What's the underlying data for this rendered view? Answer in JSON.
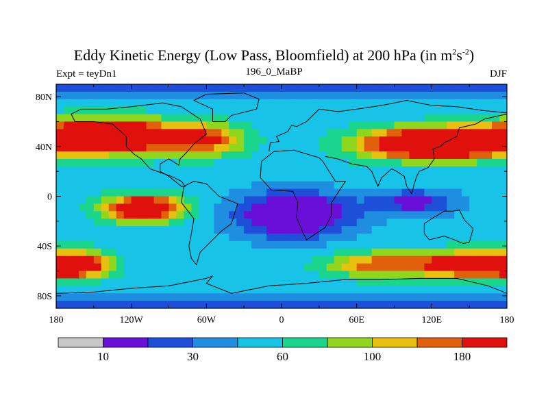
{
  "chart_data": {
    "type": "heatmap",
    "title": "Eddy Kinetic Energy (Low Pass, Bloomfield) at 200 hPa (in m",
    "title_units_sup1": "2",
    "title_mid": "s",
    "title_units_sup2": "-2",
    "title_end": ")",
    "subtitle_left": "Expt = teyDn1",
    "subtitle_center": "196_0_MaBP",
    "subtitle_right": "DJF",
    "x_ticks": [
      "180",
      "120W",
      "60W",
      "0",
      "60E",
      "120E",
      "180"
    ],
    "x_tick_values": [
      -180,
      -120,
      -60,
      0,
      60,
      120,
      180
    ],
    "y_ticks": [
      "80N",
      "40N",
      "0",
      "40S",
      "80S"
    ],
    "y_tick_values": [
      80,
      40,
      0,
      -40,
      -80
    ],
    "xlim": [
      -180,
      180
    ],
    "ylim": [
      -90,
      90
    ],
    "colorbar_levels": [
      "10",
      "30",
      "60",
      "100",
      "180"
    ],
    "colorbar_colors": [
      "#c8c8c8",
      "#6a0fd8",
      "#1e4fd8",
      "#1f8ee0",
      "#18c3e8",
      "#1ad68c",
      "#8fd61c",
      "#e8c010",
      "#e0600c",
      "#e0100c"
    ],
    "fields": {
      "jets": [
        {
          "lon": -140,
          "lat": 48,
          "lon_width": 60,
          "lat_width": 13,
          "amplitude": 9
        },
        {
          "lon": 120,
          "lat": 42,
          "lon_width": 55,
          "lat_width": 12,
          "amplitude": 9
        },
        {
          "lon": -60,
          "lat": 45,
          "lon_width": 30,
          "lat_width": 12,
          "amplitude": 4
        },
        {
          "lon": -110,
          "lat": -10,
          "lon_width": 30,
          "lat_width": 10,
          "amplitude": 8
        },
        {
          "lon": -165,
          "lat": -55,
          "lon_width": 25,
          "lat_width": 10,
          "amplitude": 7
        },
        {
          "lon": 150,
          "lat": -55,
          "lon_width": 40,
          "lat_width": 10,
          "amplitude": 7
        },
        {
          "lon": 75,
          "lat": -55,
          "lon_width": 40,
          "lat_width": 10,
          "amplitude": 4
        }
      ],
      "minima": [
        {
          "lon": 10,
          "lat": -15,
          "lon_width": 45,
          "lat_width": 18,
          "amplitude": -5
        },
        {
          "lon": 105,
          "lat": -5,
          "lon_width": 35,
          "lat_width": 10,
          "amplitude": -3
        }
      ]
    }
  }
}
